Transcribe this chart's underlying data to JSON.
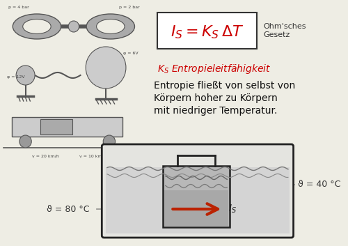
{
  "bg_color": "#eeede4",
  "formula_color": "#cc0000",
  "ohm_label": "Ohm'sches\nGesetz",
  "ks_label": "K$_S$ Entropieleitfähigkeit",
  "ks_color": "#cc0000",
  "body_text_line1": "Entropie fließt von selbst von",
  "body_text_line2": "Körpern hoher zu Körpern",
  "body_text_line3": "mit niedriger Temperatur.",
  "body_color": "#111111",
  "theta_hot": "ϑ = 80 °C",
  "theta_cold": "ϑ = 40 °C",
  "Is_label": "I$_S$",
  "arrow_color": "#bb2200",
  "box_edge_color": "#222222",
  "water_color_outer": "#d4d4d4",
  "water_color_inner": "#b8b8b8",
  "vessel_bg": "#e0e0dc",
  "inner_vessel_bg": "#c8c8c8",
  "sketch_color": "#888888",
  "sketch_edge": "#555555"
}
